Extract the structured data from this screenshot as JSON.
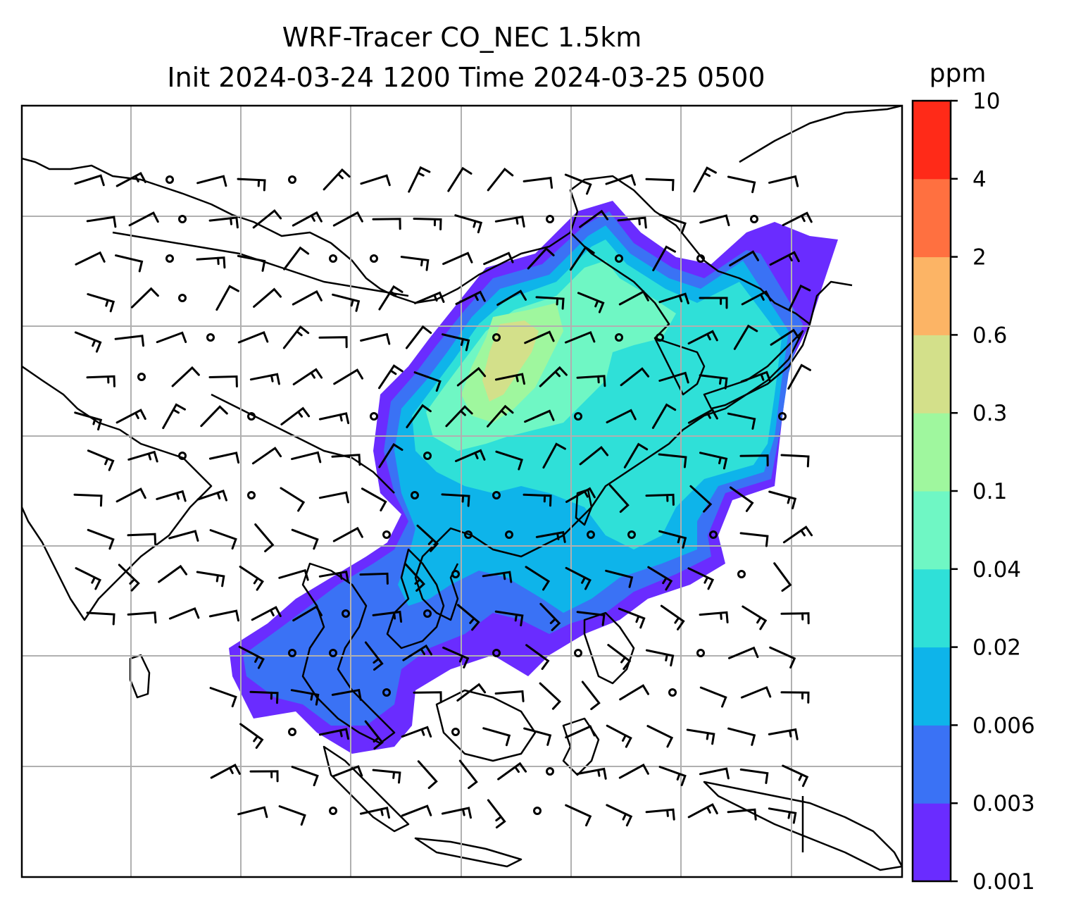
{
  "title": {
    "line1": "WRF-Tracer CO_NEC 1.5km",
    "line2": "Init 2024-03-24 1200 Time 2024-03-25 0500"
  },
  "colorbar": {
    "unit": "ppm",
    "levels": [
      "0.001",
      "0.003",
      "0.006",
      "0.02",
      "0.04",
      "0.1",
      "0.3",
      "0.6",
      "2",
      "4",
      "10"
    ],
    "colors": [
      "#6a2cff",
      "#3a72f5",
      "#0eb4ea",
      "#2fe0d8",
      "#6ff7c4",
      "#9ff79e",
      "#d3e08a",
      "#fcb465",
      "#ff7040",
      "#ff2a18"
    ]
  },
  "map": {
    "background": "#ffffff",
    "gridline_color": "#b0b0b0",
    "coastline_color": "#000000",
    "wind_barb_color": "#000000"
  }
}
